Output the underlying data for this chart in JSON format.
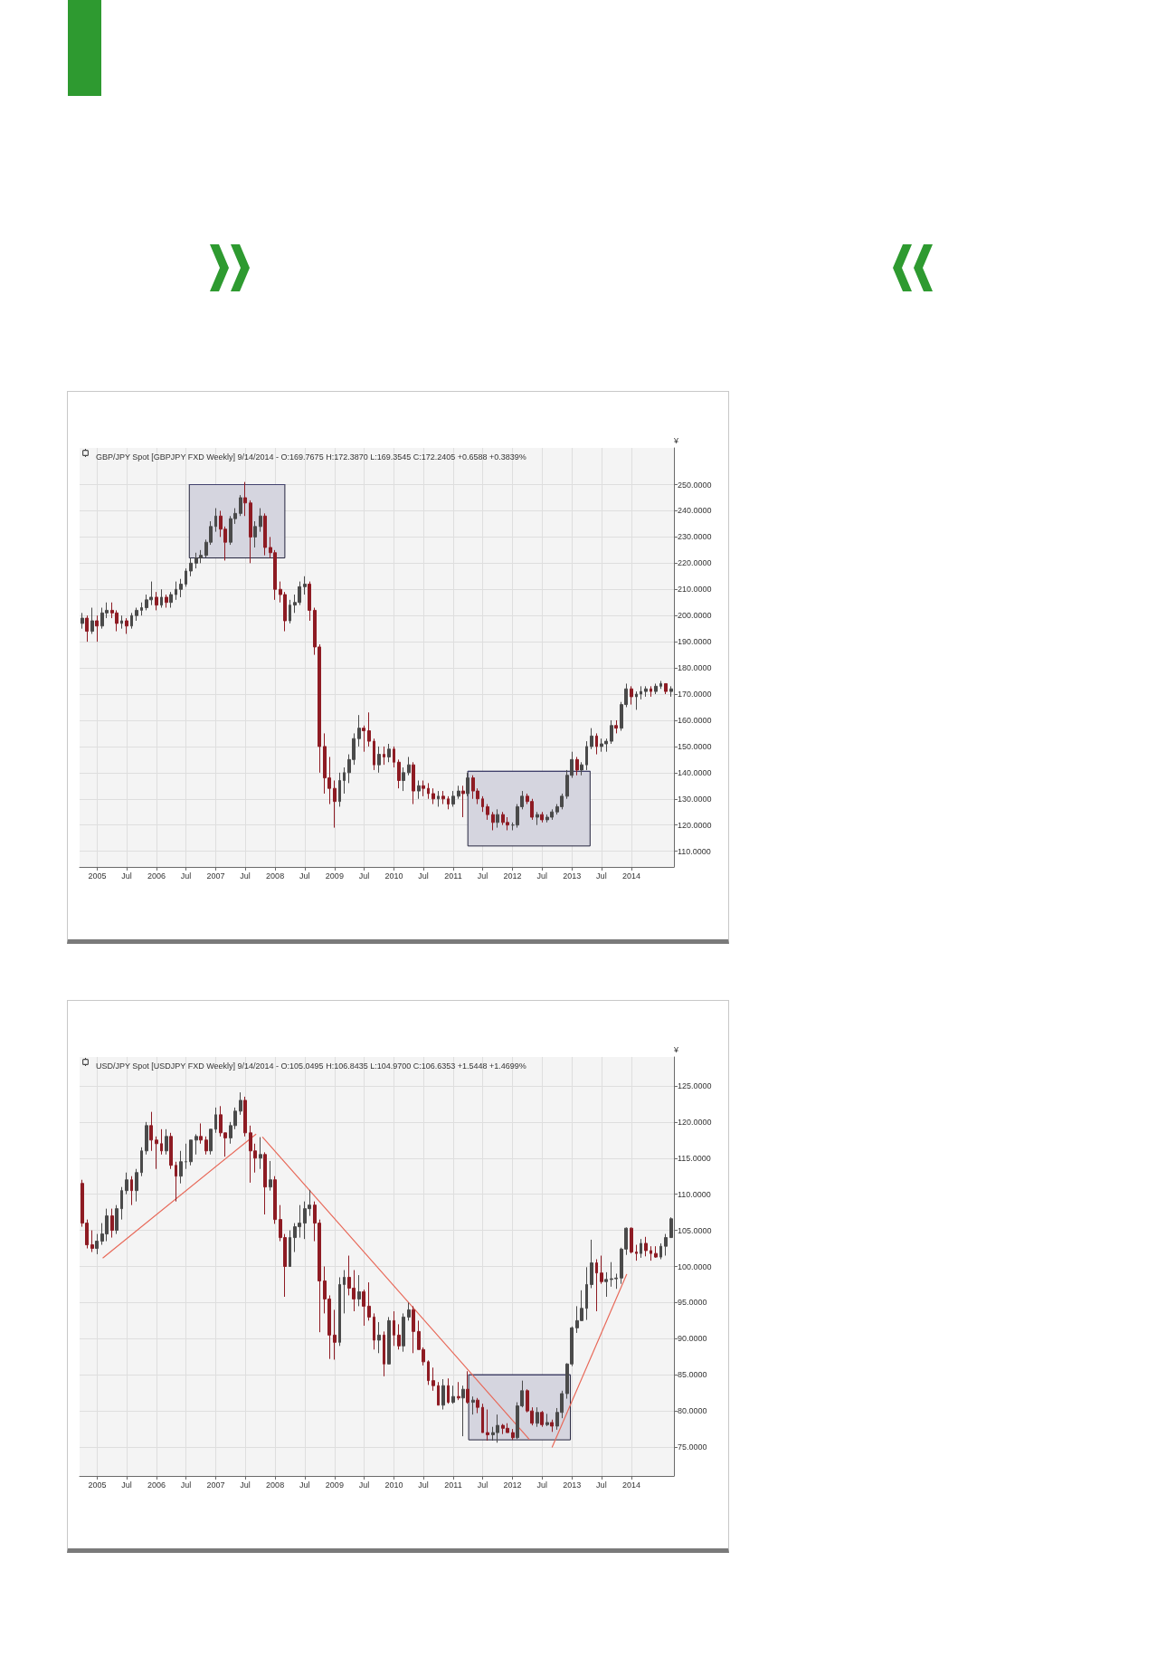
{
  "chart_data": [
    {
      "type": "candlestick",
      "title": "GBP/JPY Spot [GBPJPY FXD Weekly] 9/14/2014 - O:169.7675 H:172.3870 L:169.3545 C:172.2405 +0.6588 +0.3839%",
      "ylabel": "¥",
      "x": [
        "2004-10",
        "2004-11",
        "2004-12",
        "2005-01",
        "2005-02",
        "2005-03",
        "2005-04",
        "2005-05",
        "2005-06",
        "2005-07",
        "2005-08",
        "2005-09",
        "2005-10",
        "2005-11",
        "2005-12",
        "2006-01",
        "2006-02",
        "2006-03",
        "2006-04",
        "2006-05",
        "2006-06",
        "2006-07",
        "2006-08",
        "2006-09",
        "2006-10",
        "2006-11",
        "2006-12",
        "2007-01",
        "2007-02",
        "2007-03",
        "2007-04",
        "2007-05",
        "2007-06",
        "2007-07",
        "2007-08",
        "2007-09",
        "2007-10",
        "2007-11",
        "2007-12",
        "2008-01",
        "2008-02",
        "2008-03",
        "2008-04",
        "2008-05",
        "2008-06",
        "2008-07",
        "2008-08",
        "2008-09",
        "2008-10",
        "2008-11",
        "2008-12",
        "2009-01",
        "2009-02",
        "2009-03",
        "2009-04",
        "2009-05",
        "2009-06",
        "2009-07",
        "2009-08",
        "2009-09",
        "2009-10",
        "2009-11",
        "2009-12",
        "2010-01",
        "2010-02",
        "2010-03",
        "2010-04",
        "2010-05",
        "2010-06",
        "2010-07",
        "2010-08",
        "2010-09",
        "2010-10",
        "2010-11",
        "2010-12",
        "2011-01",
        "2011-02",
        "2011-03",
        "2011-04",
        "2011-05",
        "2011-06",
        "2011-07",
        "2011-08",
        "2011-09",
        "2011-10",
        "2011-11",
        "2011-12",
        "2012-01",
        "2012-02",
        "2012-03",
        "2012-04",
        "2012-05",
        "2012-06",
        "2012-07",
        "2012-08",
        "2012-09",
        "2012-10",
        "2012-11",
        "2012-12",
        "2013-01",
        "2013-02",
        "2013-03",
        "2013-04",
        "2013-05",
        "2013-06",
        "2013-07",
        "2013-08",
        "2013-09",
        "2013-10",
        "2013-11",
        "2013-12",
        "2014-01",
        "2014-02",
        "2014-03",
        "2014-04",
        "2014-05",
        "2014-06",
        "2014-07",
        "2014-08",
        "2014-09"
      ],
      "ohlc": [
        [
          197,
          201,
          195,
          199
        ],
        [
          199,
          200,
          190,
          194
        ],
        [
          194,
          203,
          193,
          198
        ],
        [
          198,
          200,
          190,
          196
        ],
        [
          196,
          203,
          195,
          201
        ],
        [
          201,
          205,
          199,
          202
        ],
        [
          202,
          205,
          199,
          201
        ],
        [
          201,
          202,
          194,
          197
        ],
        [
          197,
          200,
          195,
          198
        ],
        [
          198,
          199,
          193,
          196
        ],
        [
          196,
          201,
          195,
          200
        ],
        [
          200,
          203,
          198,
          202
        ],
        [
          202,
          205,
          200,
          203
        ],
        [
          203,
          208,
          202,
          206
        ],
        [
          206,
          213,
          204,
          207
        ],
        [
          207,
          209,
          202,
          204
        ],
        [
          204,
          210,
          203,
          207
        ],
        [
          207,
          208,
          203,
          205
        ],
        [
          205,
          209,
          203,
          208
        ],
        [
          208,
          213,
          206,
          210
        ],
        [
          210,
          214,
          207,
          212
        ],
        [
          212,
          218,
          211,
          217
        ],
        [
          217,
          222,
          215,
          220
        ],
        [
          220,
          224,
          218,
          222
        ],
        [
          222,
          225,
          220,
          223
        ],
        [
          223,
          229,
          222,
          228
        ],
        [
          228,
          236,
          227,
          234
        ],
        [
          234,
          241,
          232,
          238
        ],
        [
          238,
          240,
          230,
          233
        ],
        [
          233,
          234,
          221,
          228
        ],
        [
          228,
          238,
          227,
          237
        ],
        [
          237,
          241,
          235,
          239
        ],
        [
          239,
          246,
          238,
          245
        ],
        [
          245,
          251,
          238,
          243
        ],
        [
          243,
          244,
          220,
          230
        ],
        [
          230,
          236,
          226,
          234
        ],
        [
          234,
          241,
          232,
          238
        ],
        [
          238,
          239,
          223,
          226
        ],
        [
          226,
          230,
          222,
          224
        ],
        [
          224,
          225,
          206,
          210
        ],
        [
          210,
          213,
          205,
          208
        ],
        [
          208,
          209,
          194,
          198
        ],
        [
          198,
          206,
          197,
          204
        ],
        [
          204,
          208,
          201,
          205
        ],
        [
          205,
          213,
          204,
          211
        ],
        [
          211,
          215,
          208,
          212
        ],
        [
          212,
          213,
          198,
          202
        ],
        [
          202,
          203,
          185,
          188
        ],
        [
          188,
          189,
          140,
          150
        ],
        [
          150,
          155,
          132,
          138
        ],
        [
          138,
          146,
          128,
          134
        ],
        [
          134,
          137,
          119,
          129
        ],
        [
          129,
          140,
          127,
          137
        ],
        [
          137,
          142,
          132,
          140
        ],
        [
          140,
          147,
          136,
          145
        ],
        [
          145,
          155,
          143,
          153
        ],
        [
          153,
          162,
          150,
          157
        ],
        [
          157,
          158,
          148,
          156
        ],
        [
          156,
          163,
          150,
          152
        ],
        [
          152,
          153,
          141,
          143
        ],
        [
          143,
          150,
          140,
          147
        ],
        [
          147,
          150,
          143,
          146
        ],
        [
          146,
          151,
          144,
          149
        ],
        [
          149,
          150,
          142,
          144
        ],
        [
          144,
          145,
          134,
          137
        ],
        [
          137,
          142,
          133,
          140
        ],
        [
          140,
          146,
          139,
          143
        ],
        [
          143,
          144,
          128,
          133
        ],
        [
          133,
          137,
          130,
          135
        ],
        [
          135,
          137,
          131,
          134
        ],
        [
          134,
          136,
          130,
          132
        ],
        [
          132,
          134,
          128,
          130
        ],
        [
          130,
          133,
          127,
          131
        ],
        [
          131,
          133,
          128,
          130
        ],
        [
          130,
          131,
          126,
          128
        ],
        [
          128,
          133,
          127,
          131
        ],
        [
          131,
          135,
          130,
          133
        ],
        [
          133,
          135,
          123,
          132
        ],
        [
          132,
          140,
          131,
          138
        ],
        [
          138,
          139,
          130,
          133
        ],
        [
          133,
          134,
          128,
          130
        ],
        [
          130,
          131,
          125,
          127
        ],
        [
          127,
          128,
          122,
          124
        ],
        [
          124,
          125,
          118,
          121
        ],
        [
          121,
          126,
          119,
          124
        ],
        [
          124,
          125,
          120,
          121
        ],
        [
          121,
          123,
          118,
          120
        ],
        [
          120,
          121,
          118,
          120
        ],
        [
          120,
          128,
          119,
          127
        ],
        [
          127,
          133,
          126,
          131
        ],
        [
          131,
          132,
          128,
          129
        ],
        [
          129,
          130,
          122,
          123
        ],
        [
          123,
          125,
          120,
          124
        ],
        [
          124,
          125,
          121,
          122
        ],
        [
          122,
          124,
          121,
          123
        ],
        [
          123,
          126,
          122,
          125
        ],
        [
          125,
          128,
          124,
          127
        ],
        [
          127,
          132,
          126,
          131
        ],
        [
          131,
          141,
          130,
          139
        ],
        [
          139,
          148,
          138,
          145
        ],
        [
          145,
          146,
          139,
          141
        ],
        [
          141,
          144,
          139,
          143
        ],
        [
          143,
          152,
          141,
          150
        ],
        [
          150,
          157,
          149,
          154
        ],
        [
          154,
          155,
          147,
          150
        ],
        [
          150,
          153,
          148,
          151
        ],
        [
          151,
          153,
          148,
          152
        ],
        [
          152,
          160,
          151,
          158
        ],
        [
          158,
          160,
          155,
          157
        ],
        [
          157,
          167,
          156,
          166
        ],
        [
          166,
          174,
          165,
          172
        ],
        [
          172,
          173,
          166,
          169
        ],
        [
          169,
          171,
          164,
          170
        ],
        [
          170,
          173,
          168,
          171
        ],
        [
          171,
          173,
          169,
          172
        ],
        [
          172,
          173,
          169,
          171
        ],
        [
          171,
          174,
          170,
          173
        ],
        [
          173,
          175,
          172,
          174
        ],
        [
          174,
          174,
          170,
          171
        ],
        [
          171,
          173,
          169,
          172
        ]
      ],
      "colors": [
        "#4a4a4a",
        "#8e1b23",
        "#4a4a4a",
        "#8e1b23",
        "#4a4a4a",
        "#4a4a4a",
        "#8e1b23",
        "#8e1b23",
        "#4a4a4a",
        "#8e1b23",
        "#4a4a4a",
        "#4a4a4a",
        "#4a4a4a",
        "#4a4a4a",
        "#4a4a4a",
        "#8e1b23",
        "#4a4a4a",
        "#8e1b23",
        "#4a4a4a",
        "#4a4a4a",
        "#4a4a4a",
        "#4a4a4a",
        "#4a4a4a",
        "#4a4a4a",
        "#4a4a4a",
        "#4a4a4a",
        "#4a4a4a",
        "#4a4a4a",
        "#8e1b23",
        "#8e1b23",
        "#4a4a4a",
        "#4a4a4a",
        "#4a4a4a",
        "#8e1b23",
        "#8e1b23",
        "#4a4a4a",
        "#4a4a4a",
        "#8e1b23",
        "#8e1b23",
        "#8e1b23",
        "#8e1b23",
        "#8e1b23",
        "#4a4a4a",
        "#4a4a4a",
        "#4a4a4a",
        "#4a4a4a",
        "#8e1b23",
        "#8e1b23",
        "#8e1b23",
        "#8e1b23",
        "#8e1b23",
        "#8e1b23",
        "#4a4a4a",
        "#4a4a4a",
        "#4a4a4a",
        "#4a4a4a",
        "#4a4a4a",
        "#8e1b23",
        "#8e1b23",
        "#8e1b23",
        "#4a4a4a",
        "#8e1b23",
        "#4a4a4a",
        "#8e1b23",
        "#8e1b23",
        "#4a4a4a",
        "#4a4a4a",
        "#8e1b23",
        "#4a4a4a",
        "#8e1b23",
        "#8e1b23",
        "#8e1b23",
        "#4a4a4a",
        "#8e1b23",
        "#8e1b23",
        "#4a4a4a",
        "#4a4a4a",
        "#8e1b23",
        "#4a4a4a",
        "#8e1b23",
        "#8e1b23",
        "#8e1b23",
        "#8e1b23",
        "#8e1b23",
        "#4a4a4a",
        "#8e1b23",
        "#8e1b23",
        "#4a4a4a",
        "#4a4a4a",
        "#4a4a4a",
        "#8e1b23",
        "#8e1b23",
        "#4a4a4a",
        "#8e1b23",
        "#4a4a4a",
        "#4a4a4a",
        "#4a4a4a",
        "#4a4a4a",
        "#4a4a4a",
        "#4a4a4a",
        "#8e1b23",
        "#4a4a4a",
        "#4a4a4a",
        "#4a4a4a",
        "#8e1b23",
        "#4a4a4a",
        "#4a4a4a",
        "#4a4a4a",
        "#8e1b23",
        "#4a4a4a",
        "#4a4a4a",
        "#8e1b23",
        "#4a4a4a",
        "#4a4a4a",
        "#4a4a4a",
        "#8e1b23",
        "#4a4a4a",
        "#4a4a4a",
        "#8e1b23",
        "#4a4a4a"
      ],
      "series": [
        {
          "type": "line",
          "color": "#42426e",
          "x": [
            "2006-07-22",
            "2008-03-01"
          ],
          "values": [
            250,
            250
          ],
          "lower": [
            222,
            222
          ],
          "upper": [
            250,
            250
          ]
        },
        {
          "type": "line",
          "color": "#42426e",
          "x": [
            "2011-04-01",
            "2013-04-22"
          ],
          "values": [
            140.5,
            140.5
          ],
          "lower": [
            112,
            112
          ],
          "upper": [
            140.5,
            140.5
          ]
        }
      ],
      "xlim": [
        "2004-09-15",
        "2014-09-20"
      ],
      "ylim": [
        104,
        264
      ],
      "xticks": [
        {
          "value": "2005",
          "label": "2005"
        },
        {
          "value": "2005-07",
          "label": "Jul"
        },
        {
          "value": "2006",
          "label": "2006"
        },
        {
          "value": "2006-07",
          "label": "Jul"
        },
        {
          "value": "2007",
          "label": "2007"
        },
        {
          "value": "2007-07",
          "label": "Jul"
        },
        {
          "value": "2008",
          "label": "2008"
        },
        {
          "value": "2008-07",
          "label": "Jul"
        },
        {
          "value": "2009",
          "label": "2009"
        },
        {
          "value": "2009-07",
          "label": "Jul"
        },
        {
          "value": "2010",
          "label": "2010"
        },
        {
          "value": "2010-07",
          "label": "Jul"
        },
        {
          "value": "2011",
          "label": "2011"
        },
        {
          "value": "2011-07",
          "label": "Jul"
        },
        {
          "value": "2012",
          "label": "2012"
        },
        {
          "value": "2012-07",
          "label": "Jul"
        },
        {
          "value": "2013",
          "label": "2013"
        },
        {
          "value": "2013-07",
          "label": "Jul"
        },
        {
          "value": "2014",
          "label": "2014"
        }
      ],
      "yticks": [
        {
          "value": 110,
          "label": "110.0000"
        },
        {
          "value": 120,
          "label": "120.0000"
        },
        {
          "value": 130,
          "label": "130.0000"
        },
        {
          "value": 140,
          "label": "140.0000"
        },
        {
          "value": 150,
          "label": "150.0000"
        },
        {
          "value": 160,
          "label": "160.0000"
        },
        {
          "value": 170,
          "label": "170.0000"
        },
        {
          "value": 180,
          "label": "180.0000"
        },
        {
          "value": 190,
          "label": "190.0000"
        },
        {
          "value": 200,
          "label": "200.0000"
        },
        {
          "value": 210,
          "label": "210.0000"
        },
        {
          "value": 220,
          "label": "220.0000"
        },
        {
          "value": 230,
          "label": "230.0000"
        },
        {
          "value": 240,
          "label": "240.0000"
        },
        {
          "value": 250,
          "label": "250.0000"
        }
      ],
      "grid": true
    },
    {
      "type": "candlestick",
      "title": "USD/JPY Spot [USDJPY FXD Weekly] 9/14/2014 - O:105.0495 H:106.8435 L:104.9700 C:106.6353 +1.5448 +1.4699%",
      "ylabel": "¥",
      "x": [
        "2004-10",
        "2004-11",
        "2004-12",
        "2005-01",
        "2005-02",
        "2005-03",
        "2005-04",
        "2005-05",
        "2005-06",
        "2005-07",
        "2005-08",
        "2005-09",
        "2005-10",
        "2005-11",
        "2005-12",
        "2006-01",
        "2006-02",
        "2006-03",
        "2006-04",
        "2006-05",
        "2006-06",
        "2006-07",
        "2006-08",
        "2006-09",
        "2006-10",
        "2006-11",
        "2006-12",
        "2007-01",
        "2007-02",
        "2007-03",
        "2007-04",
        "2007-05",
        "2007-06",
        "2007-07",
        "2007-08",
        "2007-09",
        "2007-10",
        "2007-11",
        "2007-12",
        "2008-01",
        "2008-02",
        "2008-03",
        "2008-04",
        "2008-05",
        "2008-06",
        "2008-07",
        "2008-08",
        "2008-09",
        "2008-10",
        "2008-11",
        "2008-12",
        "2009-01",
        "2009-02",
        "2009-03",
        "2009-04",
        "2009-05",
        "2009-06",
        "2009-07",
        "2009-08",
        "2009-09",
        "2009-10",
        "2009-11",
        "2009-12",
        "2010-01",
        "2010-02",
        "2010-03",
        "2010-04",
        "2010-05",
        "2010-06",
        "2010-07",
        "2010-08",
        "2010-09",
        "2010-10",
        "2010-11",
        "2010-12",
        "2011-01",
        "2011-02",
        "2011-03",
        "2011-04",
        "2011-05",
        "2011-06",
        "2011-07",
        "2011-08",
        "2011-09",
        "2011-10",
        "2011-11",
        "2011-12",
        "2012-01",
        "2012-02",
        "2012-03",
        "2012-04",
        "2012-05",
        "2012-06",
        "2012-07",
        "2012-08",
        "2012-09",
        "2012-10",
        "2012-11",
        "2012-12",
        "2013-01",
        "2013-02",
        "2013-03",
        "2013-04",
        "2013-05",
        "2013-06",
        "2013-07",
        "2013-08",
        "2013-09",
        "2013-10",
        "2013-11",
        "2013-12",
        "2014-01",
        "2014-02",
        "2014-03",
        "2014-04",
        "2014-05",
        "2014-06",
        "2014-07",
        "2014-08",
        "2014-09"
      ],
      "ohlc": [
        [
          111.5,
          112,
          105.5,
          106
        ],
        [
          106,
          106.5,
          102.5,
          103
        ],
        [
          103,
          105,
          102,
          102.5
        ],
        [
          102.5,
          104.5,
          101.7,
          103.5
        ],
        [
          103.5,
          106,
          103,
          104.5
        ],
        [
          104.5,
          108,
          103.5,
          107
        ],
        [
          107,
          108,
          104,
          105
        ],
        [
          105,
          108.5,
          104.5,
          108
        ],
        [
          108,
          111,
          106.5,
          110.5
        ],
        [
          110.5,
          113,
          110,
          112
        ],
        [
          112,
          112.5,
          108.5,
          110.5
        ],
        [
          110.5,
          113.5,
          109,
          113
        ],
        [
          113,
          116.5,
          112.5,
          116
        ],
        [
          116,
          120,
          115.5,
          119.5
        ],
        [
          119.5,
          121.4,
          116,
          117.5
        ],
        [
          117.5,
          118,
          113.5,
          117
        ],
        [
          117,
          119,
          115.5,
          116
        ],
        [
          116,
          119,
          115.5,
          118
        ],
        [
          118,
          118.5,
          113.5,
          114
        ],
        [
          114,
          114.5,
          109,
          112.5
        ],
        [
          112.5,
          116,
          111.5,
          114.5
        ],
        [
          114.5,
          117,
          113.5,
          114.5
        ],
        [
          114.5,
          117.5,
          114,
          117.5
        ],
        [
          117.5,
          118.3,
          115.5,
          118
        ],
        [
          118,
          119.8,
          117,
          117.5
        ],
        [
          117.5,
          118,
          115.5,
          116
        ],
        [
          116,
          119,
          115.5,
          119
        ],
        [
          119,
          122,
          118.5,
          121
        ],
        [
          121,
          122.2,
          118,
          118.5
        ],
        [
          118.5,
          118.5,
          115.2,
          117.8
        ],
        [
          117.8,
          120,
          117,
          119.5
        ],
        [
          119.5,
          122,
          119,
          121.5
        ],
        [
          121.5,
          124.1,
          121,
          123
        ],
        [
          123,
          123.5,
          118,
          118.5
        ],
        [
          118.5,
          119.5,
          111.6,
          116
        ],
        [
          116,
          117,
          113,
          115
        ],
        [
          115,
          117.9,
          113.5,
          115.5
        ],
        [
          115.5,
          115.8,
          107.2,
          111
        ],
        [
          111,
          114.6,
          110.5,
          112
        ],
        [
          112,
          112.5,
          105.9,
          106.5
        ],
        [
          106.5,
          108.5,
          103.5,
          104
        ],
        [
          104,
          104.5,
          95.8,
          100
        ],
        [
          100,
          105,
          100,
          104
        ],
        [
          104,
          106,
          102,
          105.5
        ],
        [
          105.5,
          108.5,
          104,
          106
        ],
        [
          106,
          109,
          103.8,
          108
        ],
        [
          108,
          110.6,
          107,
          108.5
        ],
        [
          108.5,
          109,
          103.5,
          106
        ],
        [
          106,
          106.5,
          90.9,
          98
        ],
        [
          98,
          100,
          93.5,
          95.5
        ],
        [
          95.5,
          96,
          87.2,
          90.5
        ],
        [
          90.5,
          94,
          87.1,
          89.5
        ],
        [
          89.5,
          98.5,
          89,
          97.5
        ],
        [
          97.5,
          99.5,
          93.5,
          98.5
        ],
        [
          98.5,
          101.5,
          96,
          97
        ],
        [
          97,
          99.5,
          93.8,
          95.5
        ],
        [
          95.5,
          98.8,
          94.5,
          96.5
        ],
        [
          96.5,
          96.8,
          91.8,
          94.5
        ],
        [
          94.5,
          97.8,
          92.5,
          93
        ],
        [
          93,
          93.5,
          88.5,
          89.8
        ],
        [
          89.8,
          92.3,
          88,
          90.5
        ],
        [
          90.5,
          91,
          84.8,
          86.5
        ],
        [
          86.5,
          93,
          86.5,
          92.5
        ],
        [
          92.5,
          93.8,
          89,
          90.5
        ],
        [
          90.5,
          92,
          88.5,
          89
        ],
        [
          89,
          93.5,
          88.2,
          93
        ],
        [
          93,
          95,
          92.5,
          94
        ],
        [
          94,
          94.5,
          88,
          91
        ],
        [
          91,
          92.5,
          88.5,
          88.5
        ],
        [
          88.5,
          88.8,
          86.3,
          86.8
        ],
        [
          86.8,
          87,
          83.6,
          84.2
        ],
        [
          84.2,
          86,
          82.8,
          83.5
        ],
        [
          83.5,
          84,
          80.8,
          80.8
        ],
        [
          80.8,
          84.4,
          80.2,
          83.5
        ],
        [
          83.5,
          84.5,
          81,
          81.2
        ],
        [
          81.2,
          83.5,
          81,
          82
        ],
        [
          82,
          84,
          81.5,
          81.8
        ],
        [
          81.8,
          83.5,
          76.5,
          83
        ],
        [
          83,
          85.5,
          81,
          81.2
        ],
        [
          81.2,
          82,
          79.5,
          81.5
        ],
        [
          81.5,
          81.8,
          79.7,
          80.5
        ],
        [
          80.5,
          81,
          77,
          77
        ],
        [
          77,
          80.2,
          75.9,
          76.7
        ],
        [
          76.7,
          77.8,
          75.9,
          77
        ],
        [
          77,
          79.5,
          75.6,
          78
        ],
        [
          78,
          78.2,
          76.8,
          77.6
        ],
        [
          77.6,
          78.3,
          77,
          77
        ],
        [
          77,
          77.5,
          76,
          76.3
        ],
        [
          76.3,
          81.2,
          76.1,
          80.7
        ],
        [
          80.7,
          84.2,
          80.5,
          82.8
        ],
        [
          82.8,
          83,
          79.8,
          80
        ],
        [
          80,
          80.5,
          78,
          78.3
        ],
        [
          78.3,
          80.5,
          77.8,
          79.8
        ],
        [
          79.8,
          80,
          77.8,
          78.1
        ],
        [
          78.1,
          79.6,
          77.9,
          78.4
        ],
        [
          78.4,
          78.8,
          77.1,
          77.9
        ],
        [
          77.9,
          80.4,
          77.4,
          79.8
        ],
        [
          79.8,
          82.8,
          79,
          82.4
        ],
        [
          82.4,
          86.6,
          81.7,
          86.5
        ],
        [
          86.5,
          91.7,
          86.2,
          91.5
        ],
        [
          91.5,
          94.5,
          90.8,
          92.5
        ],
        [
          92.5,
          96.7,
          92.5,
          94.2
        ],
        [
          94.2,
          99.9,
          92.6,
          97.5
        ],
        [
          97.5,
          103.7,
          97,
          100.5
        ],
        [
          100.5,
          101,
          93.8,
          99.1
        ],
        [
          99.1,
          101.5,
          97.6,
          97.9
        ],
        [
          97.9,
          99.2,
          95.8,
          98.2
        ],
        [
          98.2,
          100.6,
          97.2,
          98.3
        ],
        [
          98.3,
          99,
          96.9,
          98.4
        ],
        [
          98.4,
          102.6,
          97.6,
          102.4
        ],
        [
          102.4,
          105.4,
          101.6,
          105.3
        ],
        [
          105.3,
          105.4,
          101.8,
          102
        ],
        [
          102,
          103,
          100.8,
          101.8
        ],
        [
          101.8,
          103.8,
          101.2,
          103.2
        ],
        [
          103.2,
          104.1,
          101.4,
          102.2
        ],
        [
          102.2,
          102.8,
          100.8,
          101.8
        ],
        [
          101.8,
          102.8,
          101.2,
          101.3
        ],
        [
          101.3,
          103.2,
          101,
          102.8
        ],
        [
          102.8,
          104.5,
          101.5,
          104
        ],
        [
          104,
          106.8,
          104,
          106.6
        ]
      ],
      "colors": [
        "#8e1b23",
        "#8e1b23",
        "#8e1b23",
        "#4a4a4a",
        "#4a4a4a",
        "#4a4a4a",
        "#8e1b23",
        "#4a4a4a",
        "#4a4a4a",
        "#4a4a4a",
        "#8e1b23",
        "#4a4a4a",
        "#4a4a4a",
        "#4a4a4a",
        "#8e1b23",
        "#8e1b23",
        "#8e1b23",
        "#4a4a4a",
        "#8e1b23",
        "#8e1b23",
        "#4a4a4a",
        "#4a4a4a",
        "#4a4a4a",
        "#4a4a4a",
        "#8e1b23",
        "#8e1b23",
        "#4a4a4a",
        "#4a4a4a",
        "#8e1b23",
        "#8e1b23",
        "#4a4a4a",
        "#4a4a4a",
        "#4a4a4a",
        "#8e1b23",
        "#8e1b23",
        "#8e1b23",
        "#4a4a4a",
        "#8e1b23",
        "#4a4a4a",
        "#8e1b23",
        "#8e1b23",
        "#8e1b23",
        "#4a4a4a",
        "#4a4a4a",
        "#4a4a4a",
        "#4a4a4a",
        "#4a4a4a",
        "#8e1b23",
        "#8e1b23",
        "#8e1b23",
        "#8e1b23",
        "#8e1b23",
        "#4a4a4a",
        "#4a4a4a",
        "#8e1b23",
        "#8e1b23",
        "#4a4a4a",
        "#8e1b23",
        "#8e1b23",
        "#8e1b23",
        "#4a4a4a",
        "#8e1b23",
        "#4a4a4a",
        "#8e1b23",
        "#8e1b23",
        "#4a4a4a",
        "#4a4a4a",
        "#8e1b23",
        "#8e1b23",
        "#8e1b23",
        "#8e1b23",
        "#8e1b23",
        "#8e1b23",
        "#4a4a4a",
        "#8e1b23",
        "#4a4a4a",
        "#8e1b23",
        "#4a4a4a",
        "#8e1b23",
        "#4a4a4a",
        "#8e1b23",
        "#8e1b23",
        "#8e1b23",
        "#4a4a4a",
        "#4a4a4a",
        "#8e1b23",
        "#8e1b23",
        "#8e1b23",
        "#4a4a4a",
        "#4a4a4a",
        "#8e1b23",
        "#8e1b23",
        "#4a4a4a",
        "#8e1b23",
        "#4a4a4a",
        "#8e1b23",
        "#4a4a4a",
        "#4a4a4a",
        "#4a4a4a",
        "#4a4a4a",
        "#4a4a4a",
        "#4a4a4a",
        "#4a4a4a",
        "#4a4a4a",
        "#8e1b23",
        "#8e1b23",
        "#4a4a4a",
        "#4a4a4a",
        "#4a4a4a",
        "#4a4a4a",
        "#4a4a4a",
        "#8e1b23",
        "#8e1b23",
        "#4a4a4a",
        "#8e1b23",
        "#8e1b23",
        "#8e1b23",
        "#4a4a4a",
        "#4a4a4a",
        "#4a4a4a"
      ],
      "series": [
        {
          "type": "line",
          "color": "#42426e",
          "x": [
            "2011-04-06",
            "2012-12-22"
          ],
          "values": [
            85,
            85
          ],
          "lower": [
            76,
            76
          ],
          "upper": [
            85,
            85
          ]
        },
        {
          "type": "line",
          "color": "#e86a5a",
          "x": [
            "2005-02-06",
            "2007-09-04"
          ],
          "values": [
            101.2,
            118.3
          ]
        },
        {
          "type": "line",
          "color": "#e86a5a",
          "x": [
            "2007-10-16",
            "2012-04-12"
          ],
          "values": [
            117.9,
            76.1
          ]
        },
        {
          "type": "line",
          "color": "#e86a5a",
          "x": [
            "2012-09-01",
            "2013-12-03"
          ],
          "values": [
            75,
            98.9
          ]
        }
      ],
      "xlim": [
        "2004-09-15",
        "2014-09-20"
      ],
      "ylim": [
        71,
        129
      ],
      "xticks": [
        {
          "value": "2005",
          "label": "2005"
        },
        {
          "value": "2005-07",
          "label": "Jul"
        },
        {
          "value": "2006",
          "label": "2006"
        },
        {
          "value": "2006-07",
          "label": "Jul"
        },
        {
          "value": "2007",
          "label": "2007"
        },
        {
          "value": "2007-07",
          "label": "Jul"
        },
        {
          "value": "2008",
          "label": "2008"
        },
        {
          "value": "2008-07",
          "label": "Jul"
        },
        {
          "value": "2009",
          "label": "2009"
        },
        {
          "value": "2009-07",
          "label": "Jul"
        },
        {
          "value": "2010",
          "label": "2010"
        },
        {
          "value": "2010-07",
          "label": "Jul"
        },
        {
          "value": "2011",
          "label": "2011"
        },
        {
          "value": "2011-07",
          "label": "Jul"
        },
        {
          "value": "2012",
          "label": "2012"
        },
        {
          "value": "2012-07",
          "label": "Jul"
        },
        {
          "value": "2013",
          "label": "2013"
        },
        {
          "value": "2013-07",
          "label": "Jul"
        },
        {
          "value": "2014",
          "label": "2014"
        }
      ],
      "yticks": [
        {
          "value": 75,
          "label": "75.0000"
        },
        {
          "value": 80,
          "label": "80.0000"
        },
        {
          "value": 85,
          "label": "85.0000"
        },
        {
          "value": 90,
          "label": "90.0000"
        },
        {
          "value": 95,
          "label": "95.0000"
        },
        {
          "value": 100,
          "label": "100.0000"
        },
        {
          "value": 105,
          "label": "105.0000"
        },
        {
          "value": 110,
          "label": "110.0000"
        },
        {
          "value": 115,
          "label": "115.0000"
        },
        {
          "value": 120,
          "label": "120.0000"
        },
        {
          "value": 125,
          "label": "125.0000"
        }
      ],
      "grid": true
    }
  ]
}
